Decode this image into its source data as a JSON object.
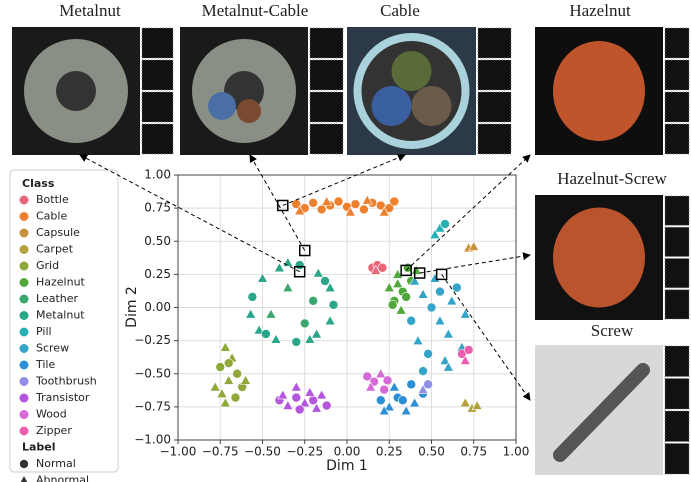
{
  "panels": [
    {
      "title": "Metalnut"
    },
    {
      "title": "Metalnut-Cable"
    },
    {
      "title": "Cable"
    },
    {
      "title": "Hazelnut"
    },
    {
      "title": "Hazelnut-Screw"
    },
    {
      "title": "Screw"
    }
  ],
  "chart_data": {
    "type": "scatter",
    "xlabel": "Dim 1",
    "ylabel": "Dim 2",
    "grid": true,
    "xlim": [
      -1,
      1
    ],
    "ylim": [
      -1,
      1
    ],
    "xticks": [
      {
        "value": -1,
        "label": "−1.00"
      },
      {
        "value": -0.75,
        "label": "−0.75"
      },
      {
        "value": -0.5,
        "label": "−0.50"
      },
      {
        "value": -0.25,
        "label": "−0.25"
      },
      {
        "value": 0,
        "label": "0.00"
      },
      {
        "value": 0.25,
        "label": "0.25"
      },
      {
        "value": 0.5,
        "label": "0.50"
      },
      {
        "value": 0.75,
        "label": "0.75"
      },
      {
        "value": 1,
        "label": "1.00"
      }
    ],
    "yticks": [
      {
        "value": -1,
        "label": "−1.00"
      },
      {
        "value": -0.75,
        "label": "−0.75"
      },
      {
        "value": -0.5,
        "label": "−0.50"
      },
      {
        "value": -0.25,
        "label": "−0.25"
      },
      {
        "value": 0,
        "label": "0.00"
      },
      {
        "value": 0.25,
        "label": "0.25"
      },
      {
        "value": 0.5,
        "label": "0.50"
      },
      {
        "value": 0.75,
        "label": "0.75"
      },
      {
        "value": 1,
        "label": "1.00"
      }
    ],
    "legend_title": "Class",
    "label_title": "Label",
    "labels": [
      "Normal",
      "Abnormal"
    ],
    "series": [
      {
        "name": "Bottle",
        "color": "#e8687a",
        "x": [
          0.15,
          0.18,
          0.21,
          0.17
        ],
        "y": [
          0.3,
          0.32,
          0.3,
          0.28
        ],
        "kind": [
          0,
          0,
          0,
          1
        ]
      },
      {
        "name": "Cable",
        "color": "#ee7f2d",
        "x": [
          -0.3,
          -0.25,
          -0.2,
          -0.15,
          -0.1,
          -0.05,
          0,
          0.05,
          0.1,
          0.15,
          0.2,
          0.25,
          0.28,
          -0.28,
          -0.12,
          0.02,
          0.12,
          0.22
        ],
        "y": [
          0.78,
          0.75,
          0.79,
          0.74,
          0.77,
          0.8,
          0.76,
          0.78,
          0.74,
          0.79,
          0.77,
          0.75,
          0.8,
          0.73,
          0.8,
          0.72,
          0.81,
          0.72
        ],
        "kind": [
          0,
          0,
          0,
          0,
          0,
          0,
          0,
          0,
          0,
          0,
          0,
          0,
          0,
          1,
          1,
          1,
          1,
          1
        ]
      },
      {
        "name": "Capsule",
        "color": "#c9923a",
        "x": [
          0.72,
          0.75
        ],
        "y": [
          0.45,
          0.46
        ],
        "kind": [
          1,
          1
        ]
      },
      {
        "name": "Carpet",
        "color": "#b3a23c",
        "x": [
          0.7,
          0.74,
          0.77
        ],
        "y": [
          -0.72,
          -0.76,
          -0.74
        ],
        "kind": [
          1,
          1,
          1
        ]
      },
      {
        "name": "Grid",
        "color": "#8ea83a",
        "x": [
          -0.72,
          -0.68,
          -0.75,
          -0.65,
          -0.7,
          -0.62,
          -0.78,
          -0.66,
          -0.72,
          -0.6,
          -0.7,
          -0.74
        ],
        "y": [
          -0.3,
          -0.38,
          -0.45,
          -0.5,
          -0.55,
          -0.6,
          -0.6,
          -0.68,
          -0.72,
          -0.55,
          -0.42,
          -0.65
        ],
        "kind": [
          1,
          1,
          0,
          0,
          1,
          0,
          1,
          0,
          1,
          1,
          0,
          1
        ]
      },
      {
        "name": "Hazelnut",
        "color": "#4fa83a",
        "x": [
          0.28,
          0.33,
          0.38,
          0.25,
          0.3,
          0.36,
          0.41,
          0.27,
          0.32,
          0.35,
          0.3
        ],
        "y": [
          0.05,
          0.12,
          0.2,
          0.15,
          0.25,
          0.3,
          0.28,
          0.02,
          -0.02,
          0.08,
          0.18
        ],
        "kind": [
          0,
          0,
          0,
          1,
          1,
          0,
          1,
          0,
          1,
          0,
          1
        ]
      },
      {
        "name": "Leather",
        "color": "#3aa86e",
        "x": [
          -0.2,
          -0.45,
          -0.35,
          -0.25
        ],
        "y": [
          0.05,
          -0.05,
          0.15,
          -0.12
        ],
        "kind": [
          0,
          1,
          1,
          0
        ]
      },
      {
        "name": "Metalnut",
        "color": "#2aa68a",
        "x": [
          -0.08,
          -0.1,
          -0.17,
          -0.28,
          -0.4,
          -0.5,
          -0.56,
          -0.57,
          -0.52,
          -0.42,
          -0.3,
          -0.18,
          -0.1,
          -0.13,
          -0.35,
          -0.48,
          -0.22
        ],
        "y": [
          0.02,
          0.15,
          0.26,
          0.32,
          0.3,
          0.22,
          0.08,
          -0.05,
          -0.17,
          -0.24,
          -0.26,
          -0.2,
          -0.1,
          0.2,
          0.34,
          -0.2,
          -0.24
        ],
        "kind": [
          0,
          1,
          1,
          0,
          1,
          1,
          0,
          1,
          1,
          1,
          0,
          1,
          1,
          0,
          1,
          0,
          1
        ]
      },
      {
        "name": "Pill",
        "color": "#27b0b4",
        "x": [
          0.55,
          0.58,
          0.52
        ],
        "y": [
          0.6,
          0.63,
          0.55
        ],
        "kind": [
          1,
          0,
          1
        ]
      },
      {
        "name": "Screw",
        "color": "#35a4c8",
        "x": [
          0.4,
          0.45,
          0.5,
          0.55,
          0.6,
          0.65,
          0.7,
          0.42,
          0.48,
          0.58,
          0.62,
          0.38,
          0.52,
          0.68,
          0.45,
          0.6,
          0.55
        ],
        "y": [
          0.2,
          0.1,
          0.0,
          -0.1,
          -0.2,
          0.15,
          -0.05,
          -0.25,
          -0.35,
          -0.4,
          0.05,
          -0.1,
          0.22,
          -0.3,
          -0.48,
          -0.45,
          0.12
        ],
        "kind": [
          1,
          1,
          0,
          1,
          1,
          0,
          1,
          1,
          0,
          1,
          1,
          0,
          1,
          1,
          0,
          1,
          0
        ]
      },
      {
        "name": "Tile",
        "color": "#2c8fd6",
        "x": [
          0.2,
          0.25,
          0.3,
          0.35,
          0.4,
          0.45,
          0.28,
          0.38,
          0.22,
          0.33
        ],
        "y": [
          -0.7,
          -0.75,
          -0.68,
          -0.78,
          -0.72,
          -0.65,
          -0.6,
          -0.58,
          -0.78,
          -0.7
        ],
        "kind": [
          0,
          1,
          0,
          1,
          1,
          0,
          1,
          0,
          1,
          0
        ]
      },
      {
        "name": "Toothbrush",
        "color": "#8f8fe6",
        "x": [
          0.45,
          0.48
        ],
        "y": [
          -0.62,
          -0.58
        ],
        "kind": [
          1,
          0
        ]
      },
      {
        "name": "Transistor",
        "color": "#b455dd",
        "x": [
          -0.4,
          -0.35,
          -0.3,
          -0.25,
          -0.2,
          -0.15,
          -0.12,
          -0.38,
          -0.28,
          -0.18,
          -0.3,
          -0.22
        ],
        "y": [
          -0.7,
          -0.74,
          -0.68,
          -0.72,
          -0.7,
          -0.66,
          -0.74,
          -0.66,
          -0.77,
          -0.76,
          -0.6,
          -0.64
        ],
        "kind": [
          0,
          1,
          0,
          1,
          0,
          1,
          0,
          1,
          0,
          1,
          1,
          1
        ]
      },
      {
        "name": "Wood",
        "color": "#d36ad6",
        "x": [
          0.12,
          0.16,
          0.2,
          0.24,
          0.14,
          0.22
        ],
        "y": [
          -0.52,
          -0.56,
          -0.5,
          -0.55,
          -0.6,
          -0.62
        ],
        "kind": [
          0,
          0,
          1,
          0,
          1,
          0
        ]
      },
      {
        "name": "Zipper",
        "color": "#ec5fb0",
        "x": [
          0.68,
          0.7,
          0.72
        ],
        "y": [
          -0.35,
          -0.4,
          -0.32
        ],
        "kind": [
          0,
          1,
          0
        ]
      }
    ],
    "highlights": [
      {
        "x": -0.28,
        "y": 0.27,
        "panel": 0
      },
      {
        "x": -0.25,
        "y": 0.43,
        "panel": 1
      },
      {
        "x": -0.38,
        "y": 0.77,
        "panel": 2
      },
      {
        "x": 0.35,
        "y": 0.28,
        "panel": 3
      },
      {
        "x": 0.43,
        "y": 0.26,
        "panel": 4
      },
      {
        "x": 0.56,
        "y": 0.25,
        "panel": 5
      }
    ]
  }
}
